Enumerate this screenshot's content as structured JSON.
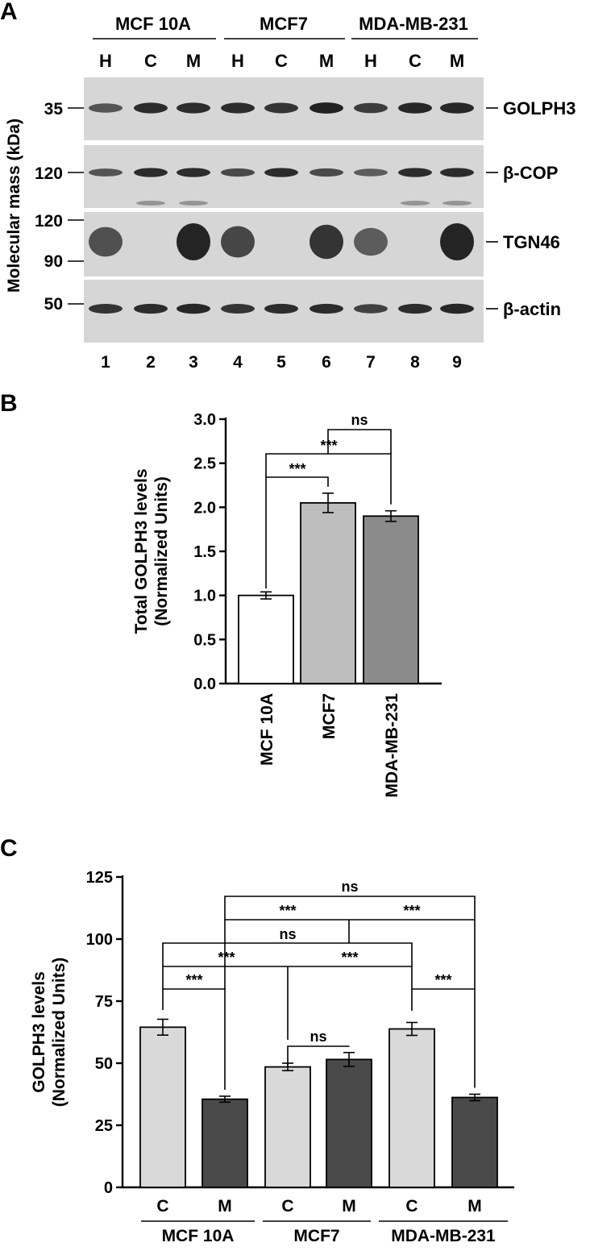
{
  "panel_labels": {
    "a": "A",
    "b": "B",
    "c": "C"
  },
  "blot": {
    "cell_lines": [
      "MCF 10A",
      "MCF7",
      "MDA-MB-231"
    ],
    "fractions": [
      "H",
      "C",
      "M",
      "H",
      "C",
      "M",
      "H",
      "C",
      "M"
    ],
    "lane_numbers": [
      "1",
      "2",
      "3",
      "4",
      "5",
      "6",
      "7",
      "8",
      "9"
    ],
    "ylabel": "Molecular mass (kDa)",
    "mw_markers": [
      "35",
      "120",
      "120",
      "90",
      "50"
    ],
    "proteins": [
      "GOLPH3",
      "β-COP",
      "TGN46",
      "β-actin"
    ],
    "band_colors": {
      "background": "#d6d6d6",
      "band": "#1a1a1a"
    },
    "band_intensity": {
      "golph3": [
        0.55,
        0.85,
        0.85,
        0.85,
        0.8,
        0.95,
        0.75,
        0.9,
        0.9
      ],
      "bcop": [
        0.55,
        0.85,
        0.85,
        0.65,
        0.85,
        0.65,
        0.5,
        0.85,
        0.85
      ],
      "tgn46": [
        0.6,
        0.0,
        1.0,
        0.7,
        0.0,
        0.85,
        0.5,
        0.0,
        1.0
      ],
      "actin": [
        0.8,
        0.85,
        0.9,
        0.8,
        0.85,
        0.85,
        0.7,
        0.85,
        0.9
      ]
    }
  },
  "chart_data": [
    {
      "type": "bar",
      "panel": "B",
      "categories": [
        "MCF 10A",
        "MCF7",
        "MDA-MB-231"
      ],
      "values": [
        1.0,
        2.05,
        1.9
      ],
      "errors": [
        0.04,
        0.11,
        0.06
      ],
      "bar_colors": [
        "#ffffff",
        "#bdbdbd",
        "#8a8a8a"
      ],
      "ylabel": "Total GOLPH3 levels\n(Normalized Units)",
      "ylabel_lines": [
        "Total GOLPH3 levels",
        "(Normalized Units)"
      ],
      "ylim": [
        0,
        3.0
      ],
      "yticks": [
        "0.0",
        "0.5",
        "1.0",
        "1.5",
        "2.0",
        "2.5",
        "3.0"
      ],
      "significance": [
        {
          "from": 0,
          "to": 1,
          "label": "***"
        },
        {
          "from": 0,
          "to": 2,
          "label": "***"
        },
        {
          "from": 1,
          "to": 2,
          "label": "ns"
        }
      ]
    },
    {
      "type": "bar",
      "panel": "C",
      "groups": [
        "MCF 10A",
        "MCF7",
        "MDA-MB-231"
      ],
      "categories": [
        "C",
        "M",
        "C",
        "M",
        "C",
        "M"
      ],
      "values": [
        64.5,
        35.5,
        48.5,
        51.5,
        63.8,
        36.2
      ],
      "errors": [
        3.2,
        1.2,
        1.5,
        2.8,
        2.6,
        1.3
      ],
      "bar_colors": [
        "#d9d9d9",
        "#4a4a4a",
        "#d9d9d9",
        "#4a4a4a",
        "#d9d9d9",
        "#4a4a4a"
      ],
      "ylabel": "GOLPH3 levels\n(Normalized Units)",
      "ylabel_lines": [
        "GOLPH3 levels",
        "(Normalized Units)"
      ],
      "ylim": [
        0,
        125
      ],
      "yticks": [
        "0",
        "25",
        "50",
        "75",
        "100",
        "125"
      ],
      "significance": [
        {
          "from": 0,
          "to": 1,
          "label": "***"
        },
        {
          "from": 2,
          "to": 3,
          "label": "ns"
        },
        {
          "from": 4,
          "to": 5,
          "label": "***"
        },
        {
          "from": 0,
          "to": 4,
          "label": "***",
          "note": "via MCF7 branch"
        },
        {
          "from": 0,
          "to": 4,
          "label": "ns"
        },
        {
          "from": 1,
          "to": 5,
          "label": "***"
        },
        {
          "from": 1,
          "to": 5,
          "label": "ns"
        }
      ]
    }
  ]
}
